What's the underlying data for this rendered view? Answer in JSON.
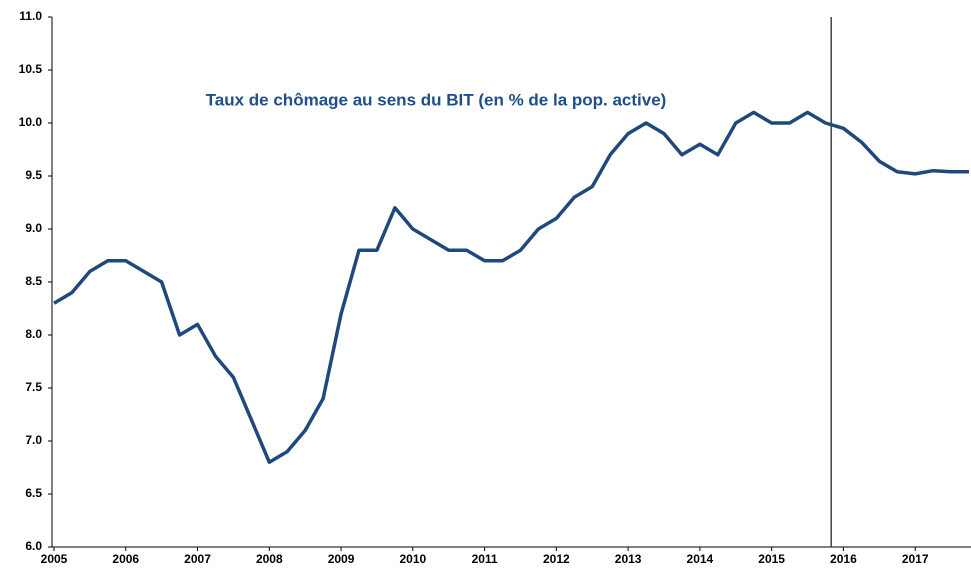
{
  "chart_data": {
    "type": "line",
    "title": "Taux de chômage au sens du BIT (en % de la pop. active)",
    "x": [
      2005,
      2005.25,
      2005.5,
      2005.75,
      2006,
      2006.25,
      2006.5,
      2006.75,
      2007,
      2007.25,
      2007.5,
      2007.75,
      2008,
      2008.25,
      2008.5,
      2008.75,
      2009,
      2009.25,
      2009.5,
      2009.75,
      2010,
      2010.25,
      2010.5,
      2010.75,
      2011,
      2011.25,
      2011.5,
      2011.75,
      2012,
      2012.25,
      2012.5,
      2012.75,
      2013,
      2013.25,
      2013.5,
      2013.75,
      2014,
      2014.25,
      2014.5,
      2014.75,
      2015,
      2015.25,
      2015.5,
      2015.75,
      2016,
      2016.25,
      2016.5,
      2016.75,
      2017,
      2017.25,
      2017.5,
      2017.75
    ],
    "series": [
      {
        "color": "#1f497d",
        "values": [
          8.3,
          8.4,
          8.6,
          8.7,
          8.7,
          8.6,
          8.5,
          8.0,
          8.1,
          7.8,
          7.6,
          7.2,
          6.8,
          6.9,
          7.1,
          7.4,
          8.2,
          8.8,
          8.8,
          9.2,
          9.0,
          8.9,
          8.8,
          8.8,
          8.7,
          8.7,
          8.8,
          9.0,
          9.1,
          9.3,
          9.4,
          9.7,
          9.9,
          10.0,
          9.9,
          9.7,
          9.8,
          9.7,
          10.0,
          10.1,
          10.0,
          10.0,
          10.1,
          10.0,
          9.95,
          9.82,
          9.64,
          9.54,
          9.52,
          9.55,
          9.54,
          9.54
        ]
      }
    ],
    "xlim": [
      2005,
      2017.75
    ],
    "xticks": [
      2005,
      2006,
      2007,
      2008,
      2009,
      2010,
      2011,
      2012,
      2013,
      2014,
      2015,
      2016,
      2017
    ],
    "ylim": [
      6,
      11
    ],
    "yticks": [
      {
        "value": 6,
        "label": "6.0"
      },
      {
        "value": 6.5,
        "label": "6.5"
      },
      {
        "value": 7,
        "label": "7.0"
      },
      {
        "value": 7.5,
        "label": "7.5"
      },
      {
        "value": 8,
        "label": "8.0"
      },
      {
        "value": 8.5,
        "label": "8.5"
      },
      {
        "value": 9,
        "label": "9.0"
      },
      {
        "value": 9.5,
        "label": "9.5"
      },
      {
        "value": 10,
        "label": "10.0"
      },
      {
        "value": 10.5,
        "label": "10.5"
      },
      {
        "value": 11,
        "label": "11.0"
      }
    ],
    "vertical_line": 2015.83,
    "grid": false
  }
}
